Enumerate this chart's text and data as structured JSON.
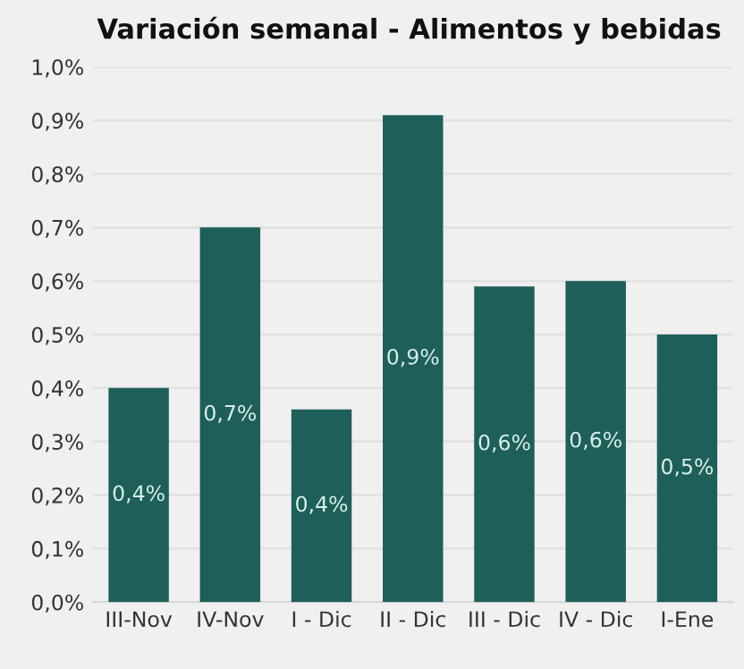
{
  "chart_data": {
    "type": "bar",
    "title": "Variación semanal - Alimentos y bebidas",
    "categories": [
      "III-Nov",
      "IV-Nov",
      "I - Dic",
      "II - Dic",
      "III - Dic",
      "IV - Dic",
      "I-Ene"
    ],
    "values": [
      0.4,
      0.7,
      0.36,
      0.91,
      0.59,
      0.6,
      0.5
    ],
    "value_labels": [
      "0,4%",
      "0,7%",
      "0,4%",
      "0,9%",
      "0,6%",
      "0,6%",
      "0,5%"
    ],
    "color": "#1e5f5a",
    "ylim": [
      0,
      1.0
    ],
    "yticks": [
      {
        "value": 0,
        "label": "0,0%"
      },
      {
        "value": 0.1,
        "label": "0,1%"
      },
      {
        "value": 0.2,
        "label": "0,2%"
      },
      {
        "value": 0.3,
        "label": "0,3%"
      },
      {
        "value": 0.4,
        "label": "0,4%"
      },
      {
        "value": 0.5,
        "label": "0,5%"
      },
      {
        "value": 0.6,
        "label": "0,6%"
      },
      {
        "value": 0.7,
        "label": "0,7%"
      },
      {
        "value": 0.8,
        "label": "0,8%"
      },
      {
        "value": 0.9,
        "label": "0,9%"
      },
      {
        "value": 1.0,
        "label": "1,0%"
      }
    ],
    "grid": "y"
  }
}
